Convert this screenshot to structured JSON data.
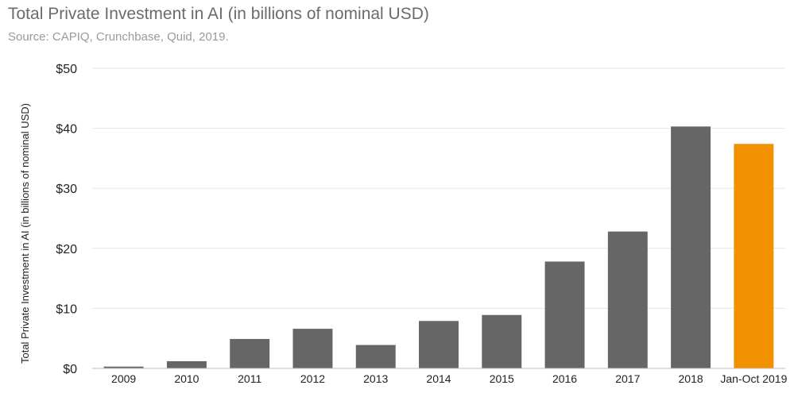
{
  "title": "Total Private Investment in AI (in billions of nominal USD)",
  "subtitle": "Source: CAPIQ, Crunchbase, Quid, 2019.",
  "chart_data": {
    "type": "bar",
    "title": "Total Private Investment in AI (in billions of nominal USD)",
    "ylabel": "Total Private Investment in AI (in billions of nominal USD)",
    "xlabel": "",
    "categories": [
      "2009",
      "2010",
      "2011",
      "2012",
      "2013",
      "2014",
      "2015",
      "2016",
      "2017",
      "2018",
      "Jan-Oct 2019"
    ],
    "values": [
      0.3,
      1.2,
      4.9,
      6.6,
      3.9,
      7.9,
      8.9,
      17.8,
      22.8,
      40.3,
      37.4
    ],
    "bar_colors": [
      "#666666",
      "#666666",
      "#666666",
      "#666666",
      "#666666",
      "#666666",
      "#666666",
      "#666666",
      "#666666",
      "#666666",
      "#f29100"
    ],
    "ylim": [
      0,
      50
    ],
    "yticks": [
      0,
      10,
      20,
      30,
      40,
      50
    ],
    "ytick_labels": [
      "$0",
      "$10",
      "$20",
      "$30",
      "$40",
      "$50"
    ],
    "grid": "horizontal",
    "legend": "none"
  }
}
